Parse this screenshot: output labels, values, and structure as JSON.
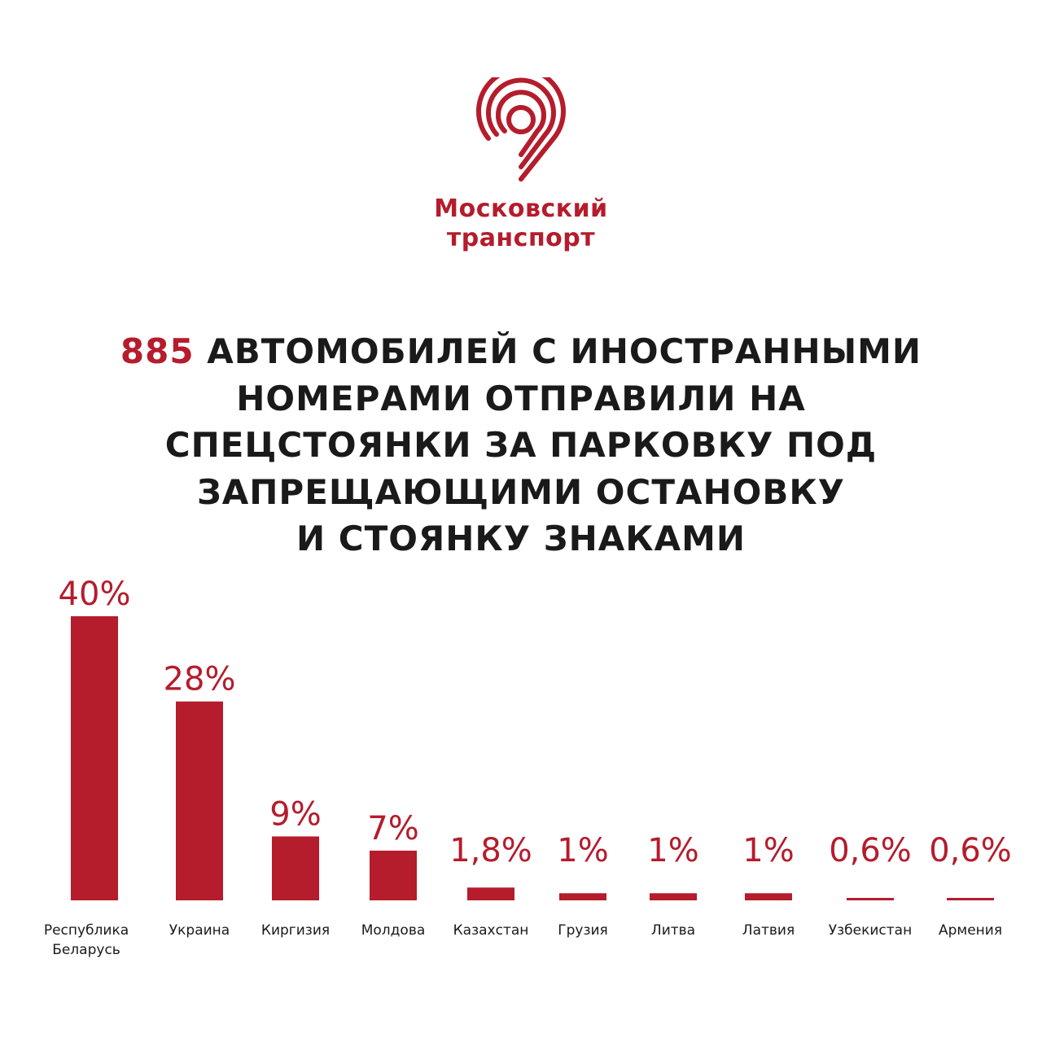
{
  "brand": {
    "name_line1": "Московский",
    "name_line2": "транспорт",
    "color": "#b51c2c"
  },
  "headline": {
    "number": "885",
    "lines": [
      "АВТОМОБИЛЕЙ С ИНОСТРАННЫМИ",
      "НОМЕРАМИ ОТПРАВИЛИ НА",
      "СПЕЦСТОЯНКИ ЗА ПАРКОВКУ ПОД",
      "ЗАПРЕЩАЮЩИМИ ОСТАНОВКУ",
      "И СТОЯНКУ ЗНАКАМИ"
    ]
  },
  "chart_data": {
    "type": "bar",
    "categories": [
      [
        "Республика",
        "Беларусь"
      ],
      [
        "Украина"
      ],
      [
        "Киргизия"
      ],
      [
        "Молдова"
      ],
      [
        "Казахстан"
      ],
      [
        "Грузия"
      ],
      [
        "Литва"
      ],
      [
        "Латвия"
      ],
      [
        "Узбекистан"
      ],
      [
        "Армения"
      ]
    ],
    "values": [
      40,
      28,
      9,
      7,
      1.8,
      1,
      1,
      1,
      0.6,
      0.6
    ],
    "value_labels": [
      "40%",
      "28%",
      "9%",
      "7%",
      "1,8%",
      "1%",
      "1%",
      "1%",
      "0,6%",
      "0,6%"
    ],
    "bar_color": "#b51c2c",
    "label_color": "#b51c2c"
  }
}
